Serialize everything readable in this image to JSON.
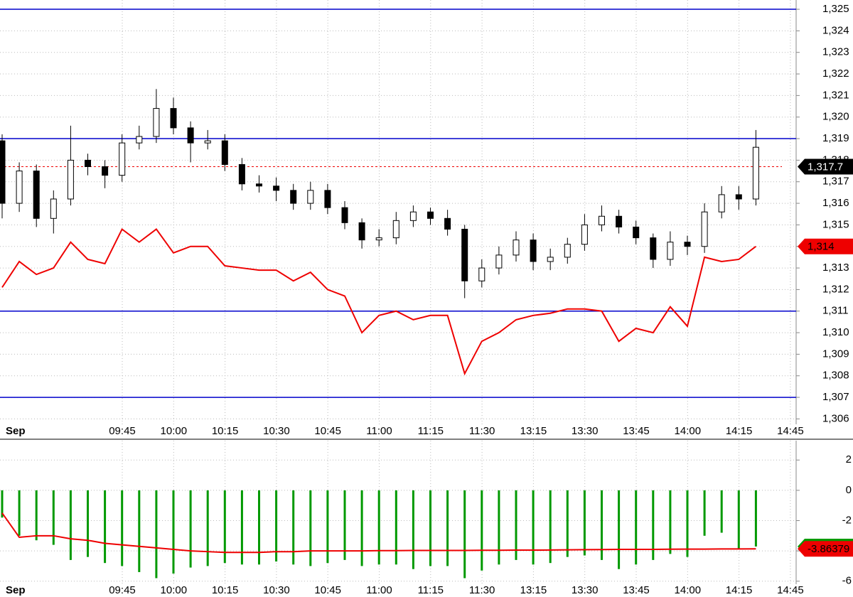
{
  "chart_data": [
    {
      "type": "candlestick",
      "xticks": [
        "Sep",
        "09:45",
        "10:00",
        "10:15",
        "10:30",
        "10:45",
        "11:00",
        "11:15",
        "11:30",
        "13:15",
        "13:30",
        "13:45",
        "14:00",
        "14:15",
        "14:45"
      ],
      "open": [
        1318.9,
        1316.0,
        1317.5,
        1315.3,
        1316.2,
        1318.0,
        1317.7,
        1317.3,
        1318.8,
        1319.1,
        1320.4,
        1319.5,
        1318.8,
        1318.9,
        1317.8,
        1316.9,
        1316.8,
        1316.6,
        1316.0,
        1316.6,
        1315.8,
        1315.1,
        1314.3,
        1314.4,
        1315.2,
        1315.6,
        1315.3,
        1314.8,
        1312.4,
        1313.0,
        1313.6,
        1314.3,
        1313.3,
        1313.5,
        1314.1,
        1315.0,
        1315.4,
        1314.9,
        1314.4,
        1313.4,
        1314.2,
        1314.0,
        1315.6,
        1316.4,
        1316.2
      ],
      "high": [
        1319.2,
        1317.9,
        1317.8,
        1316.6,
        1319.6,
        1318.3,
        1318.0,
        1319.2,
        1319.6,
        1321.3,
        1320.9,
        1319.8,
        1319.4,
        1319.2,
        1318.1,
        1317.3,
        1317.2,
        1316.9,
        1317.0,
        1316.9,
        1316.1,
        1315.3,
        1314.8,
        1315.6,
        1315.9,
        1315.8,
        1315.7,
        1315.0,
        1313.4,
        1314.0,
        1314.7,
        1314.6,
        1313.9,
        1314.4,
        1315.5,
        1315.9,
        1315.7,
        1315.2,
        1314.6,
        1314.7,
        1314.5,
        1316.0,
        1316.8,
        1316.8,
        1319.4
      ],
      "low": [
        1315.3,
        1315.6,
        1314.9,
        1314.6,
        1315.9,
        1317.3,
        1316.7,
        1317.0,
        1318.5,
        1318.8,
        1319.2,
        1317.9,
        1318.5,
        1317.5,
        1316.6,
        1316.5,
        1316.1,
        1315.7,
        1315.7,
        1315.5,
        1314.8,
        1313.9,
        1314.0,
        1314.1,
        1314.9,
        1315.0,
        1314.5,
        1311.6,
        1312.1,
        1312.7,
        1313.3,
        1312.9,
        1312.9,
        1313.2,
        1313.8,
        1314.7,
        1314.6,
        1314.1,
        1313.0,
        1313.1,
        1313.6,
        1313.7,
        1315.3,
        1315.7,
        1315.9
      ],
      "close": [
        1316.0,
        1317.5,
        1315.3,
        1316.2,
        1318.0,
        1317.7,
        1317.3,
        1318.8,
        1319.1,
        1320.4,
        1319.5,
        1318.8,
        1318.9,
        1317.8,
        1316.9,
        1316.8,
        1316.6,
        1316.0,
        1316.6,
        1315.8,
        1315.1,
        1314.3,
        1314.4,
        1315.2,
        1315.6,
        1315.3,
        1314.8,
        1312.4,
        1313.0,
        1313.6,
        1314.3,
        1313.3,
        1313.5,
        1314.1,
        1315.0,
        1315.4,
        1314.9,
        1314.4,
        1313.4,
        1314.2,
        1314.0,
        1315.6,
        1316.4,
        1316.2,
        1318.6
      ],
      "overlay": {
        "color": "#ee0000",
        "values": [
          1312.1,
          1313.3,
          1312.7,
          1313.0,
          1314.2,
          1313.4,
          1313.2,
          1314.8,
          1314.2,
          1314.8,
          1313.7,
          1314.0,
          1314.0,
          1313.1,
          1313.0,
          1312.9,
          1312.9,
          1312.4,
          1312.8,
          1312.0,
          1311.7,
          1310.0,
          1310.8,
          1311.0,
          1310.6,
          1310.8,
          1310.8,
          1308.1,
          1309.6,
          1310.0,
          1310.6,
          1310.8,
          1310.9,
          1311.1,
          1311.1,
          1311.0,
          1309.6,
          1310.2,
          1310.0,
          1311.2,
          1310.3,
          1313.5,
          1313.3,
          1313.4,
          1314.0
        ]
      },
      "hlines": {
        "color": "#0000cc",
        "values": [
          1325,
          1319,
          1311,
          1307
        ]
      },
      "markers": [
        {
          "value": 1317.7,
          "label": "1,317.7",
          "color": "#000000",
          "dashed": true
        },
        {
          "value": 1314,
          "label": "1,314",
          "color": "#ee0000",
          "dashed": false
        }
      ],
      "ylim": [
        1305.75,
        1325.43
      ],
      "yticks": [
        {
          "value": 1325,
          "label": "1,325"
        },
        {
          "value": 1324,
          "label": "1,324"
        },
        {
          "value": 1323,
          "label": "1,323"
        },
        {
          "value": 1322,
          "label": "1,322"
        },
        {
          "value": 1321,
          "label": "1,321"
        },
        {
          "value": 1320,
          "label": "1,320"
        },
        {
          "value": 1319,
          "label": "1,319"
        },
        {
          "value": 1318,
          "label": "1,318"
        },
        {
          "value": 1317,
          "label": "1,317"
        },
        {
          "value": 1316,
          "label": "1,316"
        },
        {
          "value": 1315,
          "label": "1,315"
        },
        {
          "value": 1314,
          "label": "1,314"
        },
        {
          "value": 1313,
          "label": "1,313"
        },
        {
          "value": 1312,
          "label": "1,312"
        },
        {
          "value": 1311,
          "label": "1,311"
        },
        {
          "value": 1310,
          "label": "1,310"
        },
        {
          "value": 1309,
          "label": "1,309"
        },
        {
          "value": 1308,
          "label": "1,308"
        },
        {
          "value": 1307,
          "label": "1,307"
        },
        {
          "value": 1306,
          "label": "1,306"
        }
      ],
      "grid": true
    },
    {
      "type": "bar",
      "color": "#009900",
      "values": [
        -1.8,
        -3.0,
        -3.3,
        -3.6,
        -4.6,
        -4.4,
        -4.8,
        -5.0,
        -5.4,
        -5.8,
        -5.5,
        -5.1,
        -5.0,
        -4.8,
        -4.9,
        -4.9,
        -4.7,
        -4.9,
        -5.0,
        -4.8,
        -4.6,
        -5.0,
        -4.9,
        -4.9,
        -5.2,
        -5.0,
        -5.0,
        -5.8,
        -5.3,
        -4.9,
        -4.6,
        -4.9,
        -4.8,
        -4.4,
        -4.3,
        -4.6,
        -5.2,
        -4.9,
        -4.6,
        -4.2,
        -4.4,
        -3.0,
        -2.8,
        -3.9,
        -3.70996
      ],
      "line": {
        "color": "#ee0000",
        "values": [
          -1.5,
          -3.1,
          -3.0,
          -3.0,
          -3.2,
          -3.3,
          -3.5,
          -3.6,
          -3.7,
          -3.8,
          -3.9,
          -4.0,
          -4.05,
          -4.1,
          -4.1,
          -4.1,
          -4.05,
          -4.05,
          -4.0,
          -4.0,
          -4.0,
          -4.0,
          -3.98,
          -3.98,
          -3.97,
          -3.97,
          -3.97,
          -3.97,
          -3.96,
          -3.96,
          -3.95,
          -3.95,
          -3.94,
          -3.93,
          -3.92,
          -3.91,
          -3.9,
          -3.9,
          -3.9,
          -3.89,
          -3.88,
          -3.88,
          -3.87,
          -3.87,
          -3.86379
        ]
      },
      "ylim": [
        -6.2,
        3.28
      ],
      "yticks": [
        2,
        0,
        -2,
        -4,
        -6
      ],
      "grid": true
    }
  ]
}
